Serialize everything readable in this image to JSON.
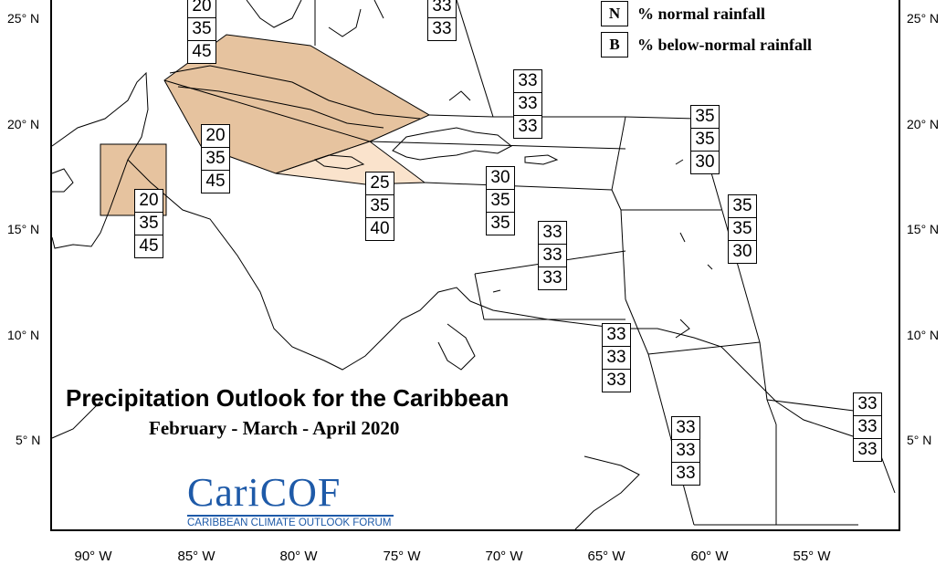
{
  "map": {
    "title": "Precipitation Outlook for the Caribbean",
    "subtitle": "February - March - April 2020",
    "legend": [
      {
        "key": "N",
        "label": "% normal rainfall"
      },
      {
        "key": "B",
        "label": "% below-normal rainfall"
      }
    ],
    "latitude_labels": [
      "25° N",
      "20° N",
      "15° N",
      "10° N",
      "5° N"
    ],
    "longitude_labels": [
      "90° W",
      "85° W",
      "80° W",
      "75° W",
      "70° W",
      "65° W",
      "60° W",
      "55° W"
    ],
    "logo": {
      "text": "CariCOF",
      "tagline": "CARIBBEAN CLIMATE OUTLOOK FORUM"
    },
    "colors": {
      "below_normal_strong": "#e6c39f",
      "below_normal_light": "#fae3cc",
      "logo_blue": "#1e5aa8"
    },
    "probability_boxes": [
      {
        "id": "bahamas-west",
        "values": [
          "20",
          "35",
          "45"
        ]
      },
      {
        "id": "bahamas-east",
        "values": [
          "33",
          "33"
        ]
      },
      {
        "id": "cuba",
        "values": [
          "20",
          "35",
          "45"
        ]
      },
      {
        "id": "belize",
        "values": [
          "20",
          "35",
          "45"
        ]
      },
      {
        "id": "jamaica",
        "values": [
          "25",
          "35",
          "40"
        ]
      },
      {
        "id": "turks-caicos",
        "values": [
          "33",
          "33",
          "33"
        ]
      },
      {
        "id": "hispaniola",
        "values": [
          "30",
          "35",
          "35"
        ]
      },
      {
        "id": "caribbean-sea",
        "values": [
          "33",
          "33",
          "33"
        ]
      },
      {
        "id": "leeward-islands",
        "values": [
          "35",
          "35",
          "30"
        ]
      },
      {
        "id": "windward-islands",
        "values": [
          "35",
          "35",
          "30"
        ]
      },
      {
        "id": "trinidad-venezuela",
        "values": [
          "33",
          "33",
          "33"
        ]
      },
      {
        "id": "guyana",
        "values": [
          "33",
          "33",
          "33"
        ]
      },
      {
        "id": "french-guiana",
        "values": [
          "33",
          "33",
          "33"
        ]
      }
    ]
  }
}
